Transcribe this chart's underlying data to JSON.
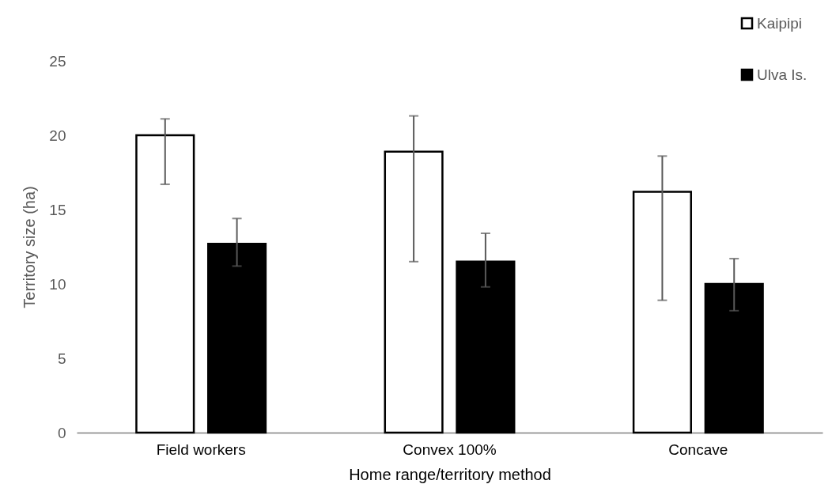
{
  "chart_data": {
    "type": "bar",
    "xlabel": "Home range/territory method",
    "ylabel": "Territory size (ha)",
    "categories": [
      "Field workers",
      "Convex 100%",
      "Concave"
    ],
    "series": [
      {
        "name": "Kaipipi",
        "color": "#ffffff",
        "values": [
          20.0,
          18.9,
          16.2
        ],
        "errors": [
          [
            16.7,
            21.1
          ],
          [
            11.5,
            21.3
          ],
          [
            8.9,
            18.6
          ]
        ]
      },
      {
        "name": "Ulva Is.",
        "color": "#000000",
        "values": [
          12.7,
          11.5,
          10.0
        ],
        "errors": [
          [
            11.2,
            14.4
          ],
          [
            9.8,
            13.4
          ],
          [
            8.2,
            11.7
          ]
        ]
      }
    ],
    "ylim": [
      0,
      25
    ],
    "yticks": [
      0,
      5,
      10,
      15,
      20,
      25
    ],
    "legend": "top right"
  }
}
